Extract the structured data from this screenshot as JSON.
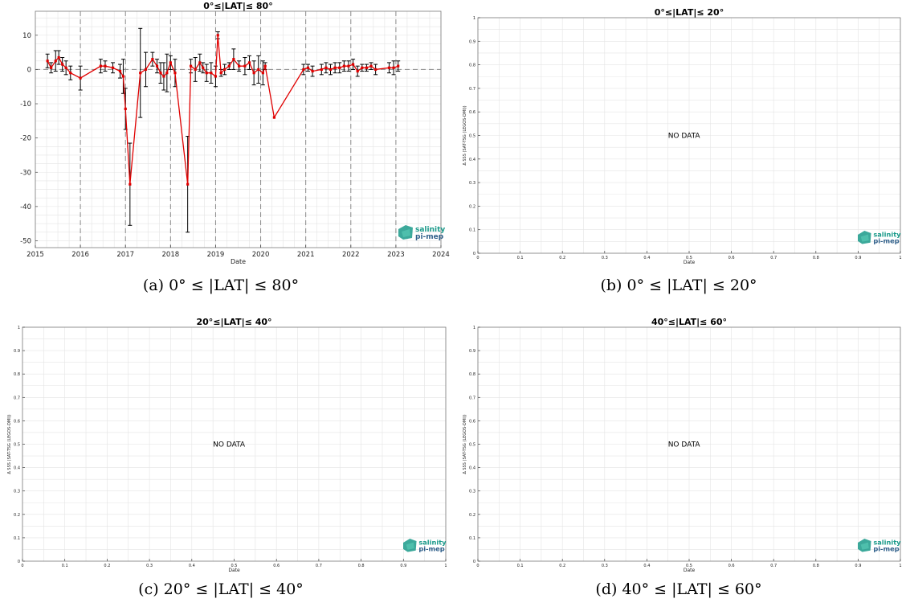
{
  "logo": {
    "line1": "salinity",
    "line2": "pi-mep",
    "color": "#1a9a8a"
  },
  "nodata_text": "NO DATA",
  "captions": [
    "(a) 0° ≤ |LAT| ≤ 80°",
    "(b) 0° ≤ |LAT| ≤ 20°",
    "(c) 20° ≤ |LAT| ≤ 40°",
    "(d) 40° ≤ |LAT| ≤ 60°"
  ],
  "colors": {
    "series": "#e00000",
    "errorbar": "#000000",
    "grid": "#e4e4e4",
    "vline": "#8a8a8a",
    "zero": "#8a8a8a"
  },
  "chart_data": [
    {
      "type": "line",
      "title": "0°≤|LAT|≤ 80°",
      "xlabel": "Date",
      "ylabel": "",
      "xlim": [
        2015,
        2024
      ],
      "ylim": [
        -52,
        17
      ],
      "xticks": [
        2015,
        2016,
        2017,
        2018,
        2019,
        2020,
        2021,
        2022,
        2023,
        2024
      ],
      "yticks": [
        10,
        0,
        -10,
        -20,
        -30,
        -40,
        -50
      ],
      "vlines": [
        2016,
        2017,
        2018,
        2019,
        2020,
        2021,
        2022,
        2023
      ],
      "hline": 0,
      "grid": true,
      "series": [
        {
          "x": [
            2015.27,
            2015.35,
            2015.45,
            2015.52,
            2015.6,
            2015.68,
            2015.78,
            2016.0,
            2016.45,
            2016.55,
            2016.72,
            2016.88,
            2016.95,
            2017.0,
            2017.1,
            2017.33,
            2017.45,
            2017.6,
            2017.7,
            2017.78,
            2017.85,
            2017.92,
            2018.0,
            2018.1,
            2018.38,
            2018.45,
            2018.55,
            2018.65,
            2018.72,
            2018.8,
            2018.9,
            2019.0,
            2019.05,
            2019.12,
            2019.2,
            2019.3,
            2019.4,
            2019.52,
            2019.65,
            2019.75,
            2019.85,
            2019.95,
            2020.05,
            2020.1,
            2020.3,
            2020.95,
            2021.05,
            2021.15,
            2021.35,
            2021.45,
            2021.55,
            2021.65,
            2021.75,
            2021.85,
            2021.95,
            2022.05,
            2022.15,
            2022.25,
            2022.35,
            2022.45,
            2022.55,
            2022.85,
            2022.95,
            2023.05
          ],
          "y": [
            2.5,
            0.5,
            2.5,
            3.5,
            1.5,
            0.5,
            -1,
            -2.5,
            1,
            1,
            0.5,
            -0.5,
            -2,
            -11.5,
            -33.5,
            -1,
            0,
            3,
            1,
            -1,
            -2,
            -1,
            2,
            -1,
            -33.5,
            1,
            0,
            2,
            0.5,
            -1,
            -1,
            -2,
            10,
            -1,
            0,
            1,
            3,
            1,
            1,
            2,
            -1,
            0,
            -1,
            1,
            -14,
            0,
            0.5,
            -0.5,
            0,
            0.5,
            0,
            0.5,
            0.5,
            1,
            1,
            1.5,
            -0.5,
            0.5,
            0.5,
            1,
            0,
            0.5,
            0.5,
            1
          ],
          "err": [
            2,
            1.5,
            3,
            2,
            2,
            2,
            2,
            3.5,
            2,
            1.5,
            1.5,
            2,
            5,
            6,
            12,
            13,
            5,
            2,
            2,
            3,
            4,
            5.5,
            2,
            4,
            14,
            2,
            3.5,
            2.5,
            1.5,
            2.5,
            3,
            3,
            1,
            1,
            1.5,
            1,
            3,
            1.5,
            2.5,
            2,
            3.5,
            4,
            3.5,
            1,
            0,
            1.5,
            1,
            1.5,
            1.5,
            1.5,
            1.5,
            1.5,
            1.5,
            1.5,
            1.5,
            1.5,
            1.5,
            1,
            1,
            1,
            1.5,
            1.5,
            2,
            1.5
          ]
        }
      ]
    },
    {
      "type": "line",
      "title": "0°≤|LAT|≤ 20°",
      "xlabel": "Date",
      "ylabel": "Δ SSS (SAT-TSG (LEGOS-DMI))",
      "xlim": [
        0,
        1
      ],
      "ylim": [
        0,
        1
      ],
      "xticks": [
        0,
        0.1,
        0.2,
        0.3,
        0.4,
        0.5,
        0.6,
        0.7,
        0.8,
        0.9,
        1
      ],
      "yticks": [
        0,
        0.1,
        0.2,
        0.3,
        0.4,
        0.5,
        0.6,
        0.7,
        0.8,
        0.9,
        1
      ],
      "grid": true,
      "series": []
    },
    {
      "type": "line",
      "title": "20°≤|LAT|≤ 40°",
      "xlabel": "Date",
      "ylabel": "Δ SSS (SAT-TSG (LEGOS-DMI))",
      "xlim": [
        0,
        1
      ],
      "ylim": [
        0,
        1
      ],
      "xticks": [
        0,
        0.1,
        0.2,
        0.3,
        0.4,
        0.5,
        0.6,
        0.7,
        0.8,
        0.9,
        1
      ],
      "yticks": [
        0,
        0.1,
        0.2,
        0.3,
        0.4,
        0.5,
        0.6,
        0.7,
        0.8,
        0.9,
        1
      ],
      "grid": true,
      "series": []
    },
    {
      "type": "line",
      "title": "40°≤|LAT|≤ 60°",
      "xlabel": "Date",
      "ylabel": "Δ SSS (SAT-TSG (LEGOS-DMI))",
      "xlim": [
        0,
        1
      ],
      "ylim": [
        0,
        1
      ],
      "xticks": [
        0,
        0.1,
        0.2,
        0.3,
        0.4,
        0.5,
        0.6,
        0.7,
        0.8,
        0.9,
        1
      ],
      "yticks": [
        0,
        0.1,
        0.2,
        0.3,
        0.4,
        0.5,
        0.6,
        0.7,
        0.8,
        0.9,
        1
      ],
      "grid": true,
      "series": []
    }
  ]
}
